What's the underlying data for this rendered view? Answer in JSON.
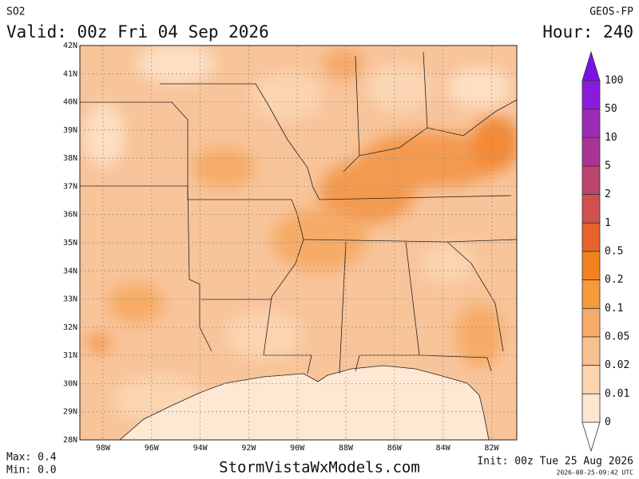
{
  "header": {
    "variable": "SO2",
    "valid": "Valid: 00z Fri 04 Sep 2026",
    "model": "GEOS-FP",
    "hour": "Hour: 240"
  },
  "map": {
    "lat_labels": [
      "42N",
      "41N",
      "40N",
      "39N",
      "38N",
      "37N",
      "36N",
      "35N",
      "34N",
      "33N",
      "32N",
      "31N",
      "30N",
      "29N",
      "28N"
    ],
    "lon_labels": [
      "98W",
      "96W",
      "94W",
      "92W",
      "90W",
      "88W",
      "86W",
      "84W",
      "82W"
    ]
  },
  "colorbar": {
    "levels": [
      "100",
      "50",
      "10",
      "5",
      "2",
      "1",
      "0.5",
      "0.2",
      "0.1",
      "0.05",
      "0.02",
      "0.01",
      "0"
    ],
    "colors": [
      "#7a12e6",
      "#8a1adc",
      "#9a2cb6",
      "#aa3494",
      "#bc4470",
      "#d05050",
      "#e6632c",
      "#f28220",
      "#f79a3c",
      "#f6ac68",
      "#f8c08e",
      "#fbd4b0",
      "#fde6d0",
      "#ffffff"
    ]
  },
  "footer": {
    "max": "Max: 0.4",
    "min": "Min: 0.0",
    "site": "StormVistaWxModels.com",
    "init": "Init: 00z Tue 25 Aug 2026",
    "timestamp": "2026-08-25-09:42 UTC"
  }
}
